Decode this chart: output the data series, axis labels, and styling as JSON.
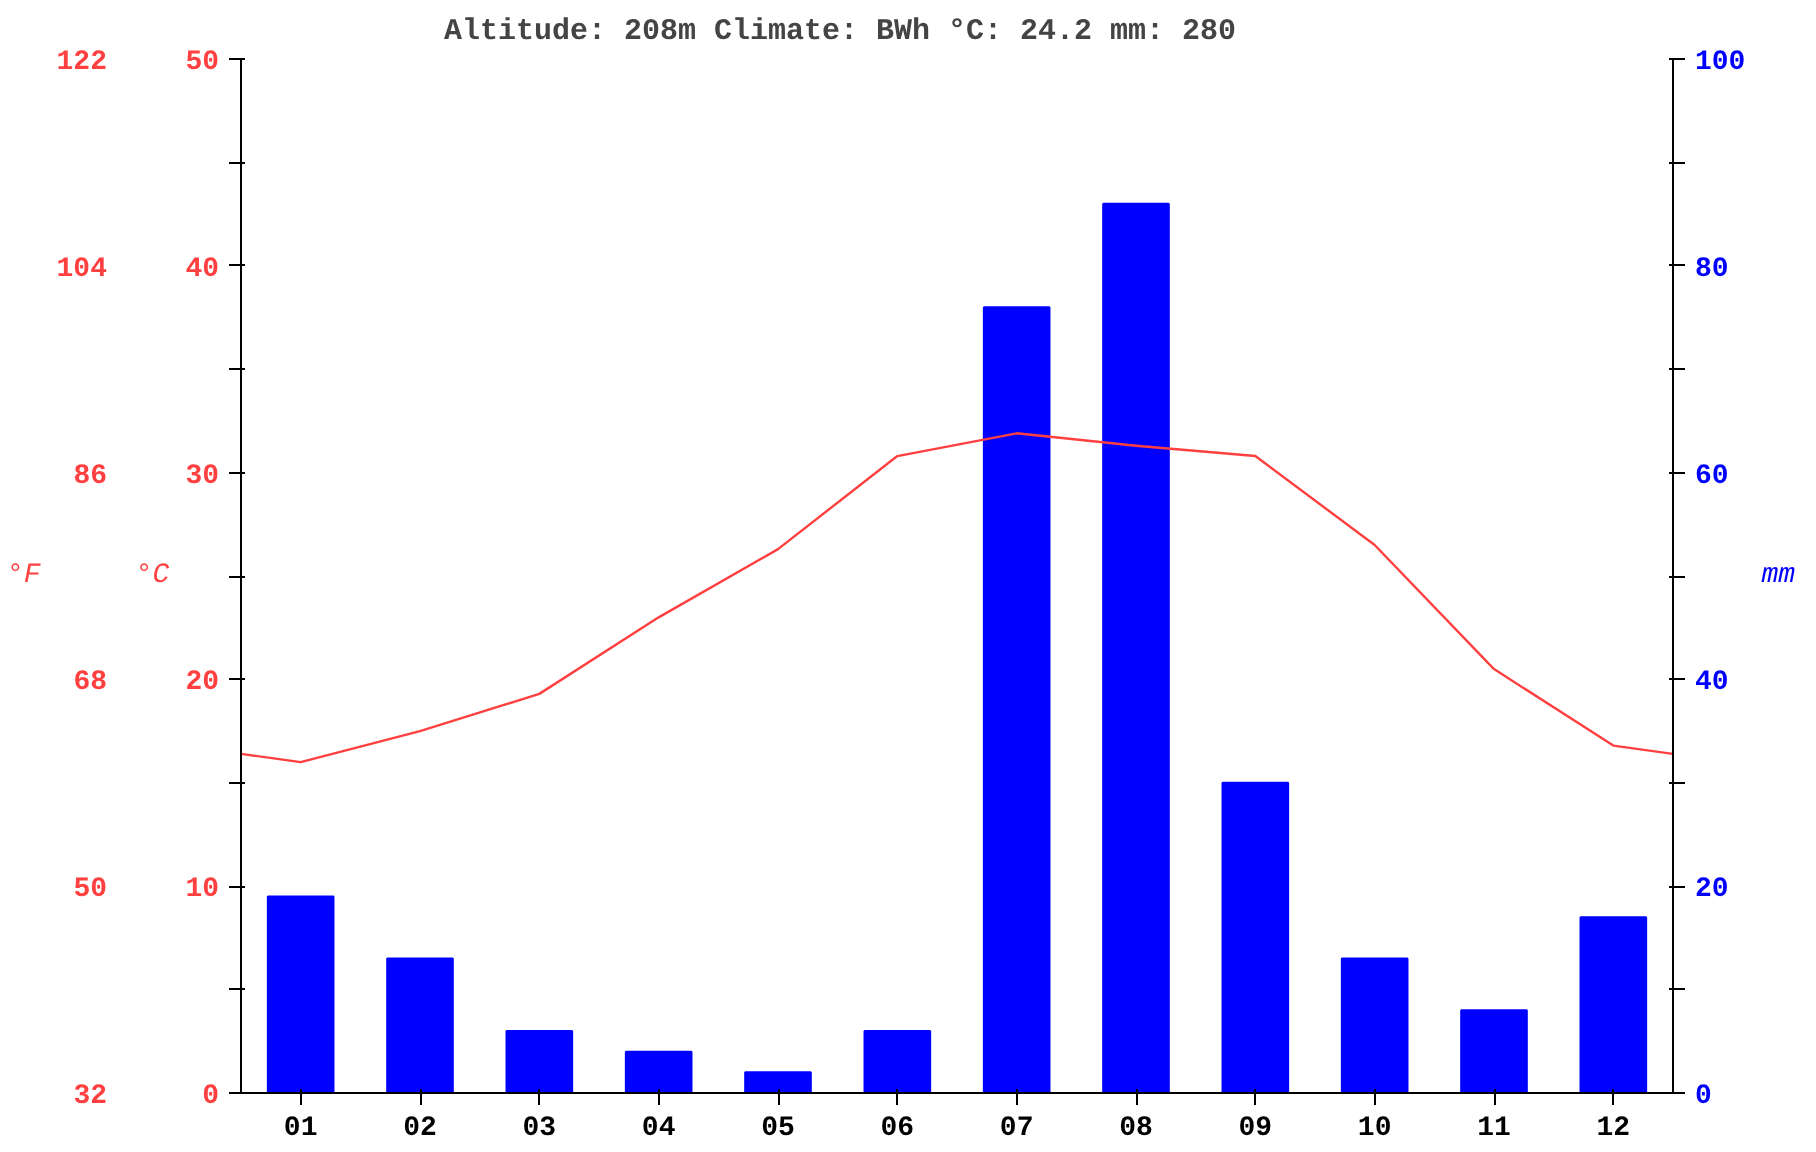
{
  "chart_data": {
    "type": "bar",
    "title": "Altitude: 208m   Climate: BWh     °C: 24.2        mm: 280",
    "ylabel": "°C",
    "y2label": "°F",
    "y3label": "mm",
    "x": [
      1,
      2,
      3,
      4,
      5,
      6,
      7,
      8,
      9,
      10,
      11,
      12
    ],
    "xlim": [
      0.5,
      12.5
    ],
    "xticks": [
      {
        "value": 1,
        "label": "01"
      },
      {
        "value": 2,
        "label": "02"
      },
      {
        "value": 3,
        "label": "03"
      },
      {
        "value": 4,
        "label": "04"
      },
      {
        "value": 5,
        "label": "05"
      },
      {
        "value": 6,
        "label": "06"
      },
      {
        "value": 7,
        "label": "07"
      },
      {
        "value": 8,
        "label": "08"
      },
      {
        "value": 9,
        "label": "09"
      },
      {
        "value": 10,
        "label": "10"
      },
      {
        "value": 11,
        "label": "11"
      },
      {
        "value": 12,
        "label": "12"
      }
    ],
    "ylim": [
      0,
      50
    ],
    "yticks": [
      0,
      {
        "value": 5,
        "label": null
      },
      10,
      {
        "value": 15,
        "label": null
      },
      20,
      {
        "value": 25,
        "label": null
      },
      30,
      {
        "value": 35,
        "label": null
      },
      40,
      {
        "value": 45,
        "label": null
      },
      50
    ],
    "y2lim": [
      32,
      122
    ],
    "y2ticks": [
      32,
      50,
      68,
      86,
      104,
      122
    ],
    "y3lim": [
      0,
      100
    ],
    "y3ticks": [
      0,
      {
        "value": 10,
        "label": null
      },
      20,
      {
        "value": 30,
        "label": null
      },
      40,
      {
        "value": 50,
        "label": null
      },
      60,
      {
        "value": 70,
        "label": null
      },
      80,
      {
        "value": 90,
        "label": null
      },
      100
    ],
    "grid": false,
    "series": [
      {
        "axis": "y3",
        "color": "#0000ff",
        "values": [
          19,
          13,
          6,
          4,
          2,
          6,
          76,
          86,
          30,
          13,
          8,
          17
        ]
      },
      {
        "type": "line",
        "axis": "y",
        "color": "#ff4040",
        "x": [
          0.5,
          1,
          2,
          3,
          4,
          5,
          6,
          7,
          8,
          9,
          10,
          11,
          12,
          12.5
        ],
        "values": [
          16.4,
          16.0,
          17.5,
          19.3,
          23.0,
          26.3,
          30.8,
          31.9,
          31.3,
          30.8,
          26.5,
          20.5,
          16.8,
          16.4
        ]
      }
    ]
  }
}
